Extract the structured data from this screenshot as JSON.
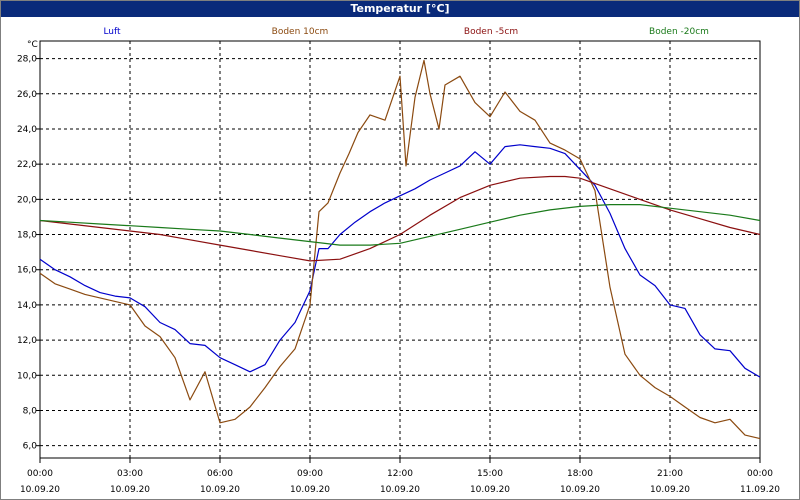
{
  "window": {
    "title": "Temperatur [°C]"
  },
  "chart_data": {
    "type": "line",
    "title": "Temperatur [°C]",
    "ylabel": "°C",
    "xlabel": "",
    "ylim": [
      5.3,
      29.0
    ],
    "xlim": [
      0,
      24
    ],
    "grid": true,
    "legend_placement": "top",
    "y_ticks": [
      "6,0",
      "8,0",
      "10,0",
      "12,0",
      "14,0",
      "16,0",
      "18,0",
      "20,0",
      "22,0",
      "24,0",
      "26,0",
      "28,0"
    ],
    "y_tick_values": [
      6,
      8,
      10,
      12,
      14,
      16,
      18,
      20,
      22,
      24,
      26,
      28
    ],
    "x_ticks": [
      {
        "x": 0,
        "time": "00:00",
        "date": "10.09.20"
      },
      {
        "x": 3,
        "time": "03:00",
        "date": "10.09.20"
      },
      {
        "x": 6,
        "time": "06:00",
        "date": "10.09.20"
      },
      {
        "x": 9,
        "time": "09:00",
        "date": "10.09.20"
      },
      {
        "x": 12,
        "time": "12:00",
        "date": "10.09.20"
      },
      {
        "x": 15,
        "time": "15:00",
        "date": "10.09.20"
      },
      {
        "x": 18,
        "time": "18:00",
        "date": "10.09.20"
      },
      {
        "x": 21,
        "time": "21:00",
        "date": "10.09.20"
      },
      {
        "x": 24,
        "time": "00:00",
        "date": "11.09.20"
      }
    ],
    "series": [
      {
        "name": "Luft",
        "color": "#0000cc",
        "x": [
          0,
          0.5,
          1,
          1.5,
          2,
          2.5,
          3,
          3.5,
          4,
          4.5,
          5,
          5.5,
          6,
          6.5,
          7,
          7.5,
          8,
          8.5,
          9,
          9.3,
          9.6,
          10,
          10.5,
          11,
          11.5,
          12,
          12.5,
          13,
          13.5,
          14,
          14.5,
          15,
          15.5,
          16,
          16.5,
          17,
          17.5,
          18,
          18.5,
          19,
          19.5,
          20,
          20.5,
          21,
          21.5,
          22,
          22.5,
          23,
          23.5,
          24
        ],
        "values": [
          16.6,
          16.0,
          15.6,
          15.1,
          14.7,
          14.5,
          14.4,
          13.9,
          13.0,
          12.6,
          11.8,
          11.7,
          11.0,
          10.6,
          10.2,
          10.6,
          12.0,
          13.0,
          14.8,
          17.2,
          17.2,
          18.0,
          18.7,
          19.3,
          19.8,
          20.2,
          20.6,
          21.1,
          21.5,
          21.9,
          22.7,
          22.0,
          23.0,
          23.1,
          23.0,
          22.9,
          22.6,
          21.7,
          20.8,
          19.2,
          17.2,
          15.7,
          15.1,
          14.0,
          13.8,
          12.3,
          11.5,
          11.4,
          10.4,
          9.9
        ]
      },
      {
        "name": "Boden 10cm",
        "color": "#8b4a10",
        "x": [
          0,
          0.5,
          1,
          1.5,
          2,
          2.5,
          3,
          3.5,
          4,
          4.5,
          5,
          5.5,
          6,
          6.5,
          7,
          7.5,
          8,
          8.5,
          9,
          9.3,
          9.6,
          10,
          10.3,
          10.6,
          11,
          11.5,
          12,
          12.2,
          12.5,
          12.8,
          13,
          13.3,
          13.5,
          14,
          14.5,
          15,
          15.5,
          16,
          16.5,
          17,
          17.5,
          18,
          18.5,
          19,
          19.5,
          20,
          20.5,
          21,
          21.5,
          22,
          22.5,
          23,
          23.5,
          24
        ],
        "values": [
          15.8,
          15.2,
          14.9,
          14.6,
          14.4,
          14.2,
          14.0,
          12.8,
          12.2,
          11.0,
          8.6,
          10.2,
          7.3,
          7.5,
          8.2,
          9.3,
          10.5,
          11.5,
          14.0,
          19.3,
          19.8,
          21.5,
          22.6,
          23.8,
          24.8,
          24.5,
          27.0,
          21.9,
          25.8,
          27.9,
          26.0,
          24.0,
          26.5,
          27.0,
          25.5,
          24.7,
          26.1,
          25.0,
          24.5,
          23.2,
          22.8,
          22.3,
          20.5,
          15.0,
          11.2,
          10.0,
          9.3,
          8.8,
          8.2,
          7.6,
          7.3,
          7.5,
          6.6,
          6.4
        ]
      },
      {
        "name": "Boden -5cm",
        "color": "#8b1010",
        "x": [
          0,
          1,
          2,
          3,
          4,
          5,
          6,
          7,
          8,
          9,
          10,
          11,
          12,
          13,
          14,
          15,
          16,
          17,
          17.5,
          18,
          19,
          20,
          21,
          22,
          23,
          24
        ],
        "values": [
          18.8,
          18.6,
          18.4,
          18.2,
          18.0,
          17.7,
          17.4,
          17.1,
          16.8,
          16.5,
          16.6,
          17.2,
          18.0,
          19.1,
          20.1,
          20.8,
          21.2,
          21.3,
          21.3,
          21.2,
          20.6,
          20.0,
          19.4,
          18.9,
          18.4,
          18.0
        ]
      },
      {
        "name": "Boden -20cm",
        "color": "#1a7a1a",
        "x": [
          0,
          1,
          2,
          3,
          4,
          5,
          6,
          7,
          8,
          9,
          10,
          11,
          12,
          13,
          14,
          15,
          16,
          17,
          18,
          19,
          20,
          21,
          22,
          23,
          24
        ],
        "values": [
          18.8,
          18.7,
          18.6,
          18.5,
          18.4,
          18.3,
          18.2,
          18.0,
          17.8,
          17.6,
          17.4,
          17.4,
          17.5,
          17.9,
          18.3,
          18.7,
          19.1,
          19.4,
          19.6,
          19.7,
          19.7,
          19.5,
          19.3,
          19.1,
          18.8
        ]
      }
    ]
  }
}
